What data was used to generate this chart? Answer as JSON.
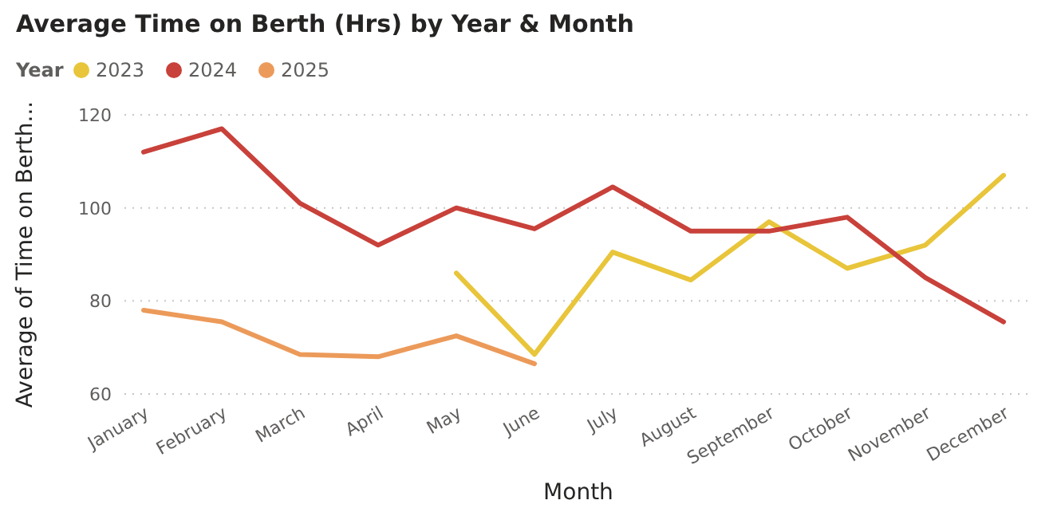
{
  "chart_data": {
    "type": "line",
    "title": "Average Time on Berth (Hrs) by Year & Month",
    "legend_title": "Year",
    "xlabel": "Month",
    "ylabel": "Average of Time on Berth...",
    "categories": [
      "January",
      "February",
      "March",
      "April",
      "May",
      "June",
      "July",
      "August",
      "September",
      "October",
      "November",
      "December"
    ],
    "series": [
      {
        "name": "2023",
        "color": "#e8c53a",
        "values": [
          null,
          null,
          null,
          null,
          86,
          68.5,
          90.5,
          84.5,
          97,
          87,
          92,
          107
        ]
      },
      {
        "name": "2024",
        "color": "#c8413a",
        "values": [
          112,
          117,
          101,
          92,
          100,
          95.5,
          104.5,
          95,
          95,
          98,
          85,
          75.5
        ]
      },
      {
        "name": "2025",
        "color": "#ec9a5a",
        "values": [
          78,
          75.5,
          68.5,
          68,
          72.5,
          66.5,
          null,
          null,
          null,
          null,
          null,
          null
        ]
      }
    ],
    "ylim": [
      60,
      120
    ],
    "yticks": [
      60,
      80,
      100,
      120
    ],
    "grid": "y",
    "legend": "top left",
    "line_style": "solid",
    "marker": "none"
  }
}
